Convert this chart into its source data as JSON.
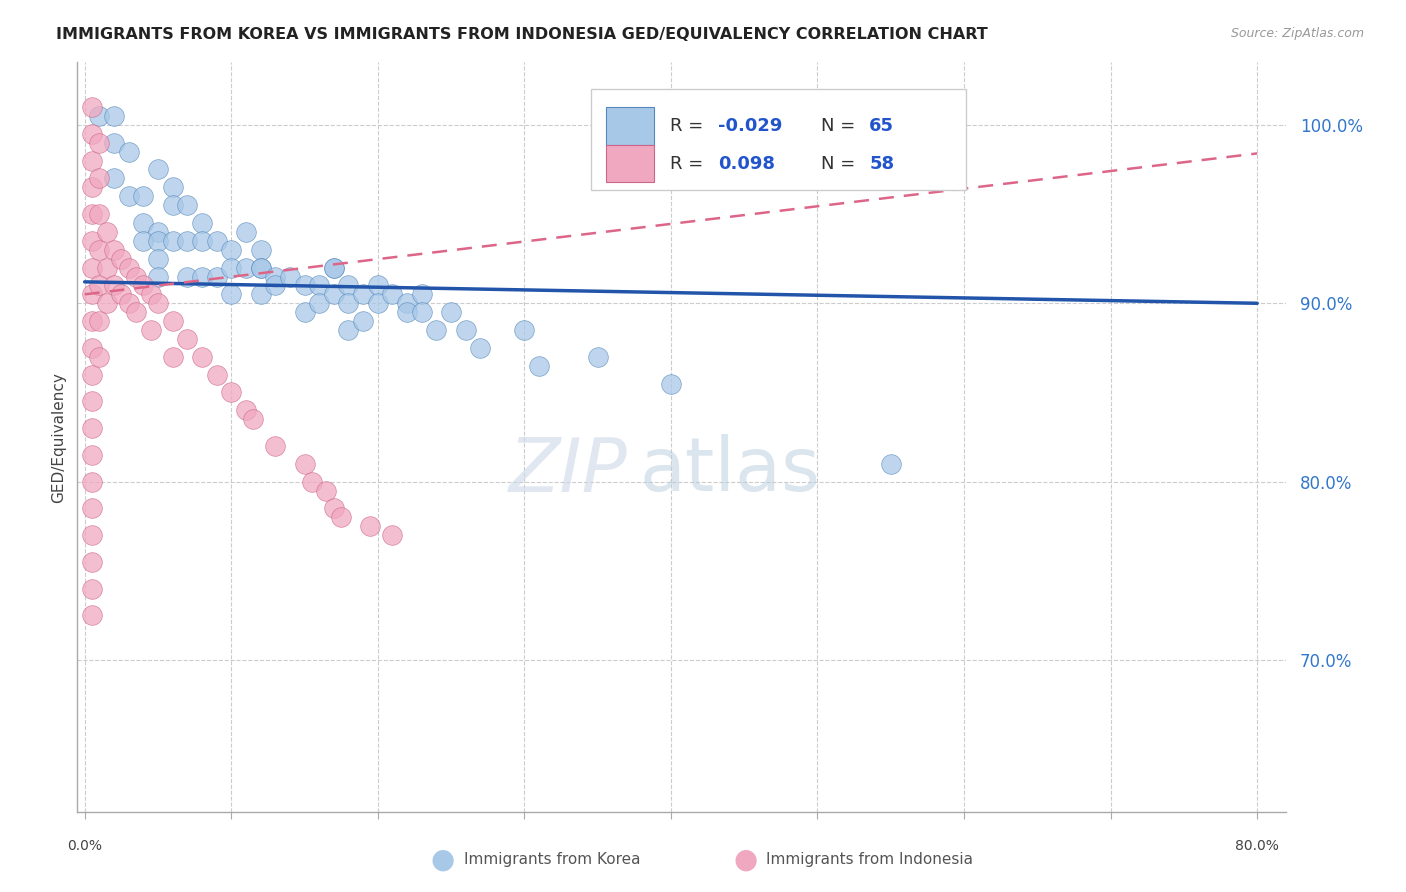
{
  "title": "IMMIGRANTS FROM KOREA VS IMMIGRANTS FROM INDONESIA GED/EQUIVALENCY CORRELATION CHART",
  "source": "Source: ZipAtlas.com",
  "ylabel": "GED/Equivalency",
  "korea_color": "#a8c8e8",
  "korea_edge_color": "#5588bb",
  "indonesia_color": "#f0a8c0",
  "indonesia_edge_color": "#cc6688",
  "korea_line_color": "#2255aa",
  "indonesia_line_color": "#dd6688",
  "watermark_zip": "ZIP",
  "watermark_atlas": "atlas",
  "legend_label_korea": "Immigrants from Korea",
  "legend_label_indonesia": "Immigrants from Indonesia",
  "xlim": [
    -0.005,
    0.82
  ],
  "ylim": [
    0.615,
    1.035
  ],
  "x_ticks": [
    0.0,
    0.1,
    0.2,
    0.3,
    0.4,
    0.5,
    0.6,
    0.7,
    0.8
  ],
  "y_ticks": [
    0.7,
    0.8,
    0.9,
    1.0
  ],
  "y_tick_labels": [
    "70.0%",
    "80.0%",
    "90.0%",
    "100.0%"
  ],
  "korea_trend_x0": 0.0,
  "korea_trend_y0": 0.912,
  "korea_trend_x1": 0.8,
  "korea_trend_y1": 0.9,
  "indonesia_trend_x0": 0.0,
  "indonesia_trend_y0": 0.905,
  "indonesia_trend_x1": 0.8,
  "indonesia_trend_y1": 0.984,
  "korea_scatter_x": [
    0.01,
    0.02,
    0.02,
    0.03,
    0.05,
    0.02,
    0.03,
    0.04,
    0.04,
    0.05,
    0.04,
    0.05,
    0.05,
    0.05,
    0.06,
    0.06,
    0.06,
    0.07,
    0.07,
    0.07,
    0.08,
    0.08,
    0.08,
    0.09,
    0.09,
    0.1,
    0.1,
    0.1,
    0.11,
    0.11,
    0.12,
    0.12,
    0.12,
    0.12,
    0.13,
    0.13,
    0.14,
    0.15,
    0.15,
    0.16,
    0.16,
    0.17,
    0.17,
    0.17,
    0.18,
    0.18,
    0.18,
    0.19,
    0.19,
    0.2,
    0.2,
    0.21,
    0.22,
    0.22,
    0.23,
    0.23,
    0.24,
    0.25,
    0.26,
    0.27,
    0.3,
    0.31,
    0.35,
    0.4,
    0.55
  ],
  "korea_scatter_y": [
    1.005,
    1.005,
    0.99,
    0.985,
    0.975,
    0.97,
    0.96,
    0.96,
    0.945,
    0.94,
    0.935,
    0.935,
    0.925,
    0.915,
    0.965,
    0.955,
    0.935,
    0.955,
    0.935,
    0.915,
    0.945,
    0.935,
    0.915,
    0.935,
    0.915,
    0.93,
    0.92,
    0.905,
    0.94,
    0.92,
    0.93,
    0.92,
    0.905,
    0.92,
    0.915,
    0.91,
    0.915,
    0.91,
    0.895,
    0.91,
    0.9,
    0.92,
    0.905,
    0.92,
    0.91,
    0.9,
    0.885,
    0.905,
    0.89,
    0.91,
    0.9,
    0.905,
    0.9,
    0.895,
    0.905,
    0.895,
    0.885,
    0.895,
    0.885,
    0.875,
    0.885,
    0.865,
    0.87,
    0.855,
    0.81
  ],
  "indonesia_scatter_x": [
    0.005,
    0.005,
    0.005,
    0.005,
    0.005,
    0.005,
    0.005,
    0.005,
    0.005,
    0.005,
    0.005,
    0.005,
    0.005,
    0.005,
    0.005,
    0.005,
    0.005,
    0.005,
    0.005,
    0.005,
    0.01,
    0.01,
    0.01,
    0.01,
    0.01,
    0.01,
    0.01,
    0.015,
    0.015,
    0.015,
    0.02,
    0.02,
    0.025,
    0.025,
    0.03,
    0.03,
    0.035,
    0.035,
    0.04,
    0.045,
    0.045,
    0.05,
    0.06,
    0.06,
    0.07,
    0.08,
    0.09,
    0.1,
    0.11,
    0.115,
    0.13,
    0.15,
    0.155,
    0.165,
    0.17,
    0.175,
    0.195,
    0.21
  ],
  "indonesia_scatter_y": [
    1.01,
    0.995,
    0.98,
    0.965,
    0.95,
    0.935,
    0.92,
    0.905,
    0.89,
    0.875,
    0.86,
    0.845,
    0.83,
    0.815,
    0.8,
    0.785,
    0.77,
    0.755,
    0.74,
    0.725,
    0.99,
    0.97,
    0.95,
    0.93,
    0.91,
    0.89,
    0.87,
    0.94,
    0.92,
    0.9,
    0.93,
    0.91,
    0.925,
    0.905,
    0.92,
    0.9,
    0.915,
    0.895,
    0.91,
    0.905,
    0.885,
    0.9,
    0.89,
    0.87,
    0.88,
    0.87,
    0.86,
    0.85,
    0.84,
    0.835,
    0.82,
    0.81,
    0.8,
    0.795,
    0.785,
    0.78,
    0.775,
    0.77
  ]
}
